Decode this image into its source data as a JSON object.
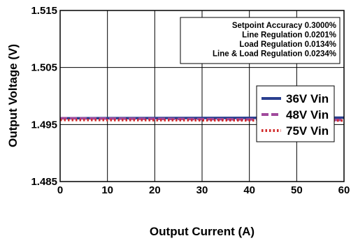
{
  "chart_data": {
    "type": "line",
    "xlabel": "Output Current (A)",
    "ylabel": "Output Voltage (V)",
    "xlim": [
      0,
      60
    ],
    "ylim": [
      1.485,
      1.515
    ],
    "x_ticks": [
      "0",
      "10",
      "20",
      "30",
      "40",
      "50",
      "60"
    ],
    "y_ticks": [
      "1.515",
      "1.505",
      "1.495",
      "1.485"
    ],
    "grid": true,
    "annotations": [
      "Setpoint Accuracy 0.3000%",
      "Line Regulation 0.0201%",
      "Load Regulation 0.0134%",
      "Line & Load Regulation 0.0234%"
    ],
    "legend_position": "right",
    "series": [
      {
        "name": "36V Vin",
        "color": "#2a3f8f",
        "style": "solid",
        "x": [
          0,
          60
        ],
        "y": [
          1.4961,
          1.4962
        ]
      },
      {
        "name": "48V Vin",
        "color": "#a04a9c",
        "style": "dashed",
        "x": [
          0,
          60
        ],
        "y": [
          1.4961,
          1.4958
        ]
      },
      {
        "name": "75V Vin",
        "color": "#d22b2b",
        "style": "dotted",
        "x": [
          0,
          60
        ],
        "y": [
          1.4958,
          1.4957
        ]
      }
    ]
  }
}
